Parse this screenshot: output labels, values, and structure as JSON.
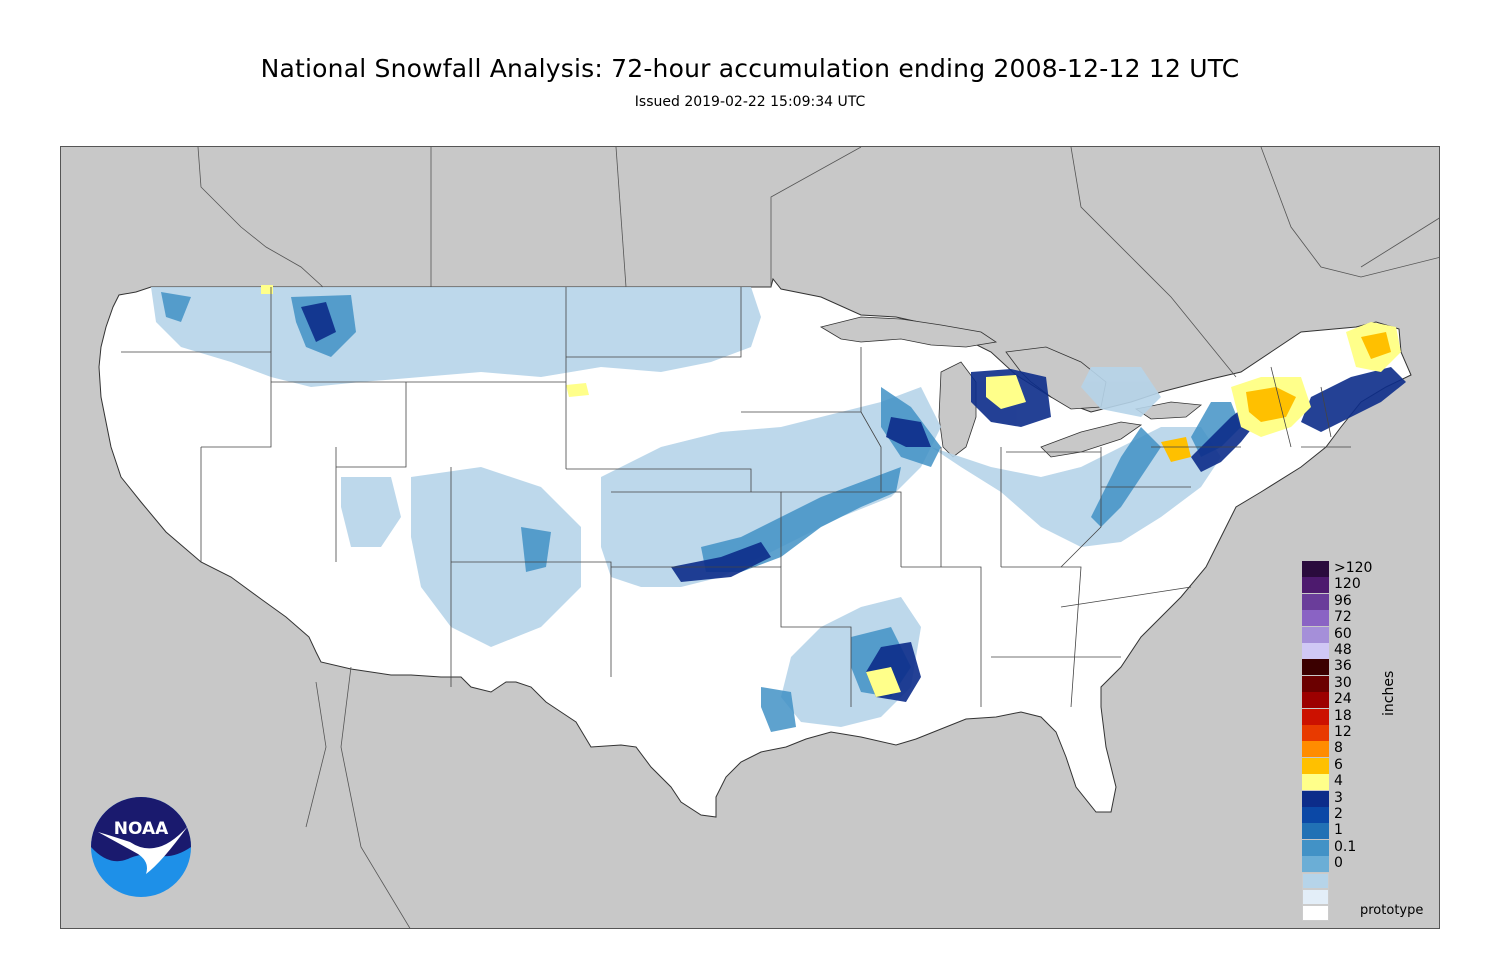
{
  "header": {
    "title": "National Snowfall Analysis: 72-hour accumulation ending 2008-12-12 12 UTC",
    "issued": "Issued 2019-02-22 15:09:34 UTC"
  },
  "map": {
    "land_outside_color": "#c8c8c8",
    "us_fill_color": "#ffffff",
    "boundary_color": "#444444"
  },
  "legend": {
    "units": "inches",
    "entries": [
      {
        "label": ">120",
        "color": "#2a0b3d"
      },
      {
        "label": "120",
        "color": "#4d1a6e"
      },
      {
        "label": "96",
        "color": "#6a3d9a"
      },
      {
        "label": "72",
        "color": "#8a63c4"
      },
      {
        "label": "60",
        "color": "#a58fd9"
      },
      {
        "label": "48",
        "color": "#d0c8f5"
      },
      {
        "label": "36",
        "color": "#3b0000"
      },
      {
        "label": "30",
        "color": "#6b0000"
      },
      {
        "label": "24",
        "color": "#9c0000"
      },
      {
        "label": "18",
        "color": "#cc1100"
      },
      {
        "label": "12",
        "color": "#e83a00"
      },
      {
        "label": "8",
        "color": "#ff8c00"
      },
      {
        "label": "6",
        "color": "#ffc000"
      },
      {
        "label": "4",
        "color": "#ffff8a"
      },
      {
        "label": "3",
        "color": "#0c2c8a"
      },
      {
        "label": "2",
        "color": "#0b48a6"
      },
      {
        "label": "1",
        "color": "#2171b5"
      },
      {
        "label": "0.1",
        "color": "#4292c6"
      },
      {
        "label": "0",
        "color": "#6baed6"
      }
    ],
    "bottom_boxes": [
      "#b6d4e9",
      "#e3eef8",
      "#ffffff"
    ]
  },
  "footer": {
    "note": "prototype"
  },
  "logo": {
    "text": "NOAA",
    "colors": {
      "top": "#1a1a6e",
      "bottom": "#1e90e8",
      "bird": "#ffffff"
    }
  }
}
